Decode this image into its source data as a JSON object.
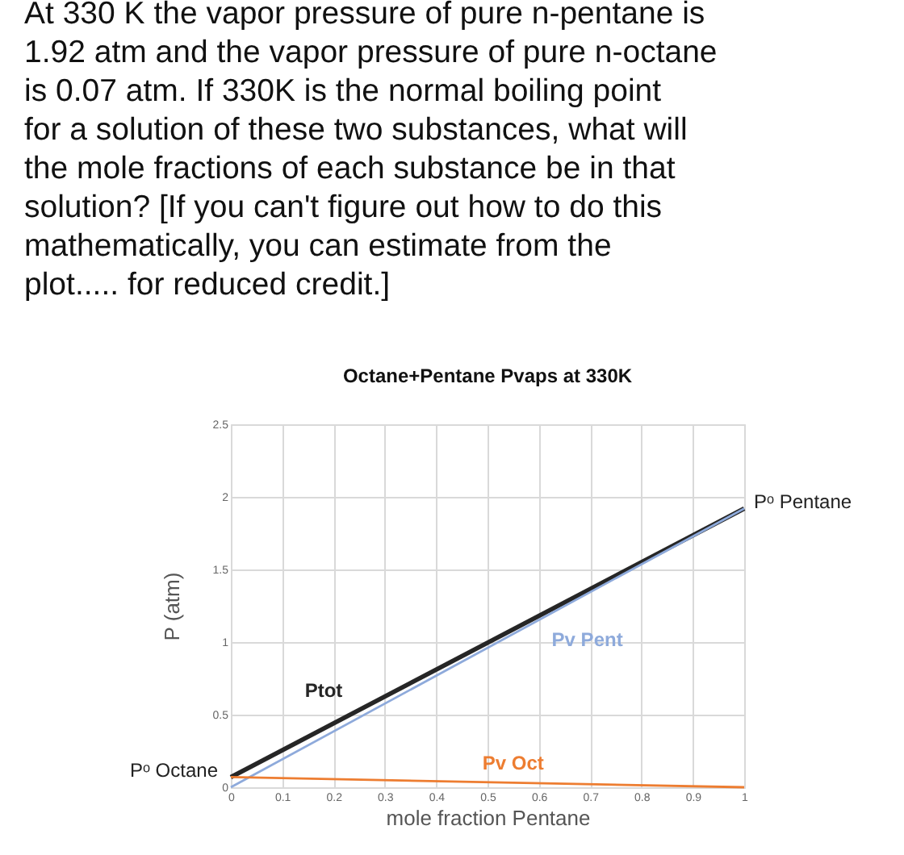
{
  "chart_data": {
    "type": "line",
    "title": "At 330 K the vapor pressure of pure n-pentane is 1.92 atm and the vapor pressure of pure n-octane is 0.07 atm. If 330K is the normal boiling point for a solution of these two substances, what will the mole fractions of each substance be in that solution? [If you can't figure out how to do this mathematically, you can estimate from the plot..... for reduced credit.]",
    "subtitle": "Octane+Pentane Pvaps at 330K",
    "xlabel": "mole fraction Pentane",
    "ylabel": "P (atm)",
    "x": [
      0,
      1
    ],
    "series": [
      {
        "name": "Ptot",
        "color": "#262626",
        "values": [
          0.07,
          1.92
        ]
      },
      {
        "name": "Pv Pent",
        "color": "#8eaadb",
        "values": [
          0,
          1.92
        ]
      },
      {
        "name": "Pv Oct",
        "color": "#ed7d31",
        "values": [
          0.07,
          0
        ]
      }
    ],
    "annotations": [
      {
        "text": "Pᵒ Pentane",
        "x": 1,
        "y": 1.92
      },
      {
        "text": "Pᵒ Octane",
        "x": 0,
        "y": 0.07
      }
    ],
    "xlim": [
      0,
      1
    ],
    "xticks": [
      0,
      0.1,
      0.2,
      0.3,
      0.4,
      0.5,
      0.6,
      0.7,
      0.8,
      0.9,
      1
    ],
    "ylim": [
      0,
      2.5
    ],
    "yticks": [
      0,
      0.5,
      1,
      1.5,
      2,
      2.5
    ],
    "grid": true,
    "marker": "none",
    "line_style": "solid"
  }
}
